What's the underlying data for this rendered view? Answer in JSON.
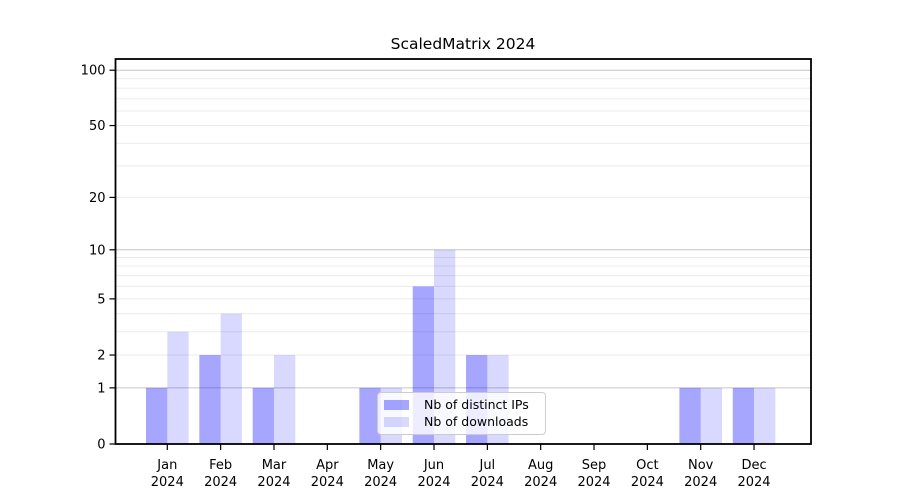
{
  "page": {
    "background": "#ffffff"
  },
  "chart_data": {
    "type": "bar",
    "title": "ScaledMatrix 2024",
    "categories": [
      "Jan",
      "Feb",
      "Mar",
      "Apr",
      "May",
      "Jun",
      "Jul",
      "Aug",
      "Sep",
      "Oct",
      "Nov",
      "Dec"
    ],
    "xtick_year": "2024",
    "series": [
      {
        "name": "Nb of distinct IPs",
        "color": "rgba(0,0,255,0.35)",
        "values": [
          1,
          2,
          1,
          0,
          1,
          6,
          2,
          0,
          0,
          0,
          1,
          1
        ]
      },
      {
        "name": "Nb of downloads",
        "color": "rgba(0,0,255,0.15)",
        "values": [
          3,
          4,
          2,
          0,
          1,
          10,
          2,
          0,
          0,
          0,
          1,
          1
        ]
      }
    ],
    "xlabel": "",
    "ylabel": "",
    "yscale": "log1p",
    "ylim": [
      0,
      115
    ],
    "yticks": [
      0,
      1,
      2,
      5,
      10,
      20,
      50,
      100
    ],
    "grid": {
      "major_values": [
        1,
        10,
        100
      ],
      "minor_values": [
        2,
        3,
        4,
        5,
        6,
        7,
        8,
        9,
        20,
        30,
        40,
        50,
        60,
        70,
        80,
        90
      ],
      "major_color": "#c6c6c6",
      "minor_color": "#ebebeb",
      "on": true
    },
    "legend_position": "lower center",
    "axis_color": "#000000",
    "tick_label_color": "#000000"
  }
}
